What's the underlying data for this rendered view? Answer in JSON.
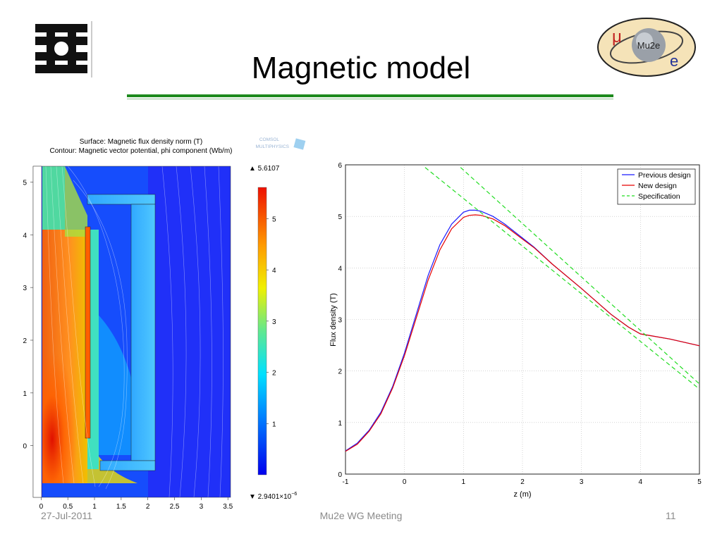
{
  "slide": {
    "title": "Magnetic model",
    "footer_left": "27-Jul-2011",
    "footer_center": "Mu2e WG Meeting",
    "page_number": "11",
    "rule_color": "#1e8a1e"
  },
  "logo_right": {
    "text": "Mu2e",
    "mu": "μ",
    "e": "e"
  },
  "chart_data": [
    {
      "type": "heatmap",
      "title_lines": [
        "Surface: Magnetic flux density norm (T)",
        "Contour: Magnetic vector potential, phi component (Wb/m)"
      ],
      "watermark": [
        "COMSOL",
        "MULTIPHYSICS"
      ],
      "x_ticks": [
        "0",
        "0.5",
        "1",
        "1.5",
        "2",
        "2.5",
        "3",
        "3.5"
      ],
      "y_ticks": [
        "5",
        "4",
        "3",
        "2",
        "1",
        "0"
      ],
      "xlim": [
        -0.15,
        3.55
      ],
      "ylim": [
        -0.98,
        5.3
      ],
      "colorbar": {
        "max_label": "▲ 5.6107",
        "min_label": "▼ 2.9401×10",
        "min_exp": "−6",
        "ticks": [
          "5",
          "4",
          "3",
          "2",
          "1"
        ],
        "range": [
          0,
          5.6107
        ]
      }
    },
    {
      "type": "line",
      "xlabel": "z (m)",
      "ylabel": "Flux density (T)",
      "xlim": [
        -1,
        5
      ],
      "ylim": [
        0,
        6
      ],
      "x_ticks": [
        "-1",
        "0",
        "1",
        "2",
        "3",
        "4",
        "5"
      ],
      "y_ticks": [
        "0",
        "1",
        "2",
        "3",
        "4",
        "5",
        "6"
      ],
      "grid": true,
      "legend_position": "top-right",
      "series": [
        {
          "name": "Previous design",
          "color": "#1a1aff",
          "dash": "none",
          "x": [
            -1,
            -0.8,
            -0.6,
            -0.4,
            -0.2,
            0,
            0.2,
            0.4,
            0.6,
            0.8,
            1.0,
            1.1,
            1.2,
            1.3,
            1.5,
            1.7,
            2.0,
            2.2,
            2.5,
            3.0,
            3.5,
            3.8,
            4.0,
            4.5,
            5.0
          ],
          "y": [
            0.45,
            0.6,
            0.85,
            1.2,
            1.7,
            2.35,
            3.1,
            3.85,
            4.45,
            4.85,
            5.08,
            5.12,
            5.12,
            5.1,
            5.0,
            4.85,
            4.58,
            4.4,
            4.08,
            3.6,
            3.1,
            2.85,
            2.72,
            2.62,
            2.49
          ]
        },
        {
          "name": "New design",
          "color": "#e60000",
          "dash": "none",
          "x": [
            -1,
            -0.8,
            -0.6,
            -0.4,
            -0.2,
            0,
            0.2,
            0.4,
            0.6,
            0.8,
            1.0,
            1.1,
            1.2,
            1.3,
            1.5,
            1.7,
            2.0,
            2.2,
            2.5,
            3.0,
            3.5,
            3.8,
            4.0,
            4.5,
            5.0
          ],
          "y": [
            0.44,
            0.58,
            0.83,
            1.17,
            1.67,
            2.3,
            3.03,
            3.76,
            4.35,
            4.76,
            4.98,
            5.02,
            5.03,
            5.02,
            4.95,
            4.82,
            4.56,
            4.39,
            4.08,
            3.6,
            3.1,
            2.85,
            2.72,
            2.62,
            2.49
          ]
        },
        {
          "name": "Specification",
          "color": "#22dd22",
          "dash": "6,4",
          "x": [
            0.35,
            5.0
          ],
          "y": [
            5.95,
            1.65
          ]
        },
        {
          "name": "",
          "color": "#22dd22",
          "dash": "6,4",
          "x": [
            0.95,
            5.0
          ],
          "y": [
            5.95,
            1.75
          ]
        }
      ],
      "legend": [
        "Previous design",
        "New design",
        "Specification"
      ]
    }
  ]
}
